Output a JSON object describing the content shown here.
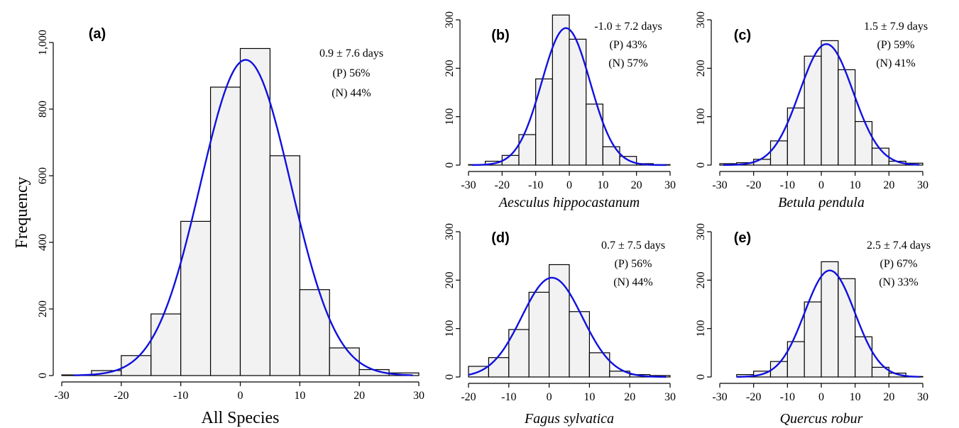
{
  "figure": {
    "ylabel": "Frequency"
  },
  "chart_data": [
    {
      "type": "bar",
      "panel": "(a)",
      "xlabel": "All Species",
      "xlabel_italic": false,
      "bin_width": 5,
      "bin_starts": [
        -30,
        -25,
        -20,
        -15,
        -10,
        -5,
        0,
        5,
        10,
        15,
        20,
        25
      ],
      "values": [
        2,
        15,
        60,
        185,
        463,
        866,
        982,
        660,
        258,
        83,
        18,
        8
      ],
      "xlim": [
        -30,
        30
      ],
      "ylim": [
        0,
        1000
      ],
      "xticks": [
        -30,
        -20,
        -10,
        0,
        10,
        20,
        30
      ],
      "yticks": [
        0,
        200,
        400,
        600,
        800,
        1000
      ],
      "ytick_labels": [
        "0",
        "200",
        "400",
        "600",
        "800",
        "1,000"
      ],
      "curve": {
        "mean": 0.9,
        "sd": 7.6,
        "peak": 948,
        "range": [
          -28,
          29
        ]
      },
      "annotations": [
        "0.9 ± 7.6 days",
        "(P) 56%",
        "(N) 44%"
      ]
    },
    {
      "type": "bar",
      "panel": "(b)",
      "xlabel": "Aesculus hippocastanum",
      "xlabel_italic": true,
      "bin_width": 5,
      "bin_starts": [
        -30,
        -25,
        -20,
        -15,
        -10,
        -5,
        0,
        5,
        10,
        15,
        20,
        25
      ],
      "values": [
        1,
        8,
        20,
        63,
        178,
        310,
        260,
        126,
        38,
        18,
        3,
        1
      ],
      "xlim": [
        -30,
        30
      ],
      "ylim": [
        0,
        300
      ],
      "xticks": [
        -30,
        -20,
        -10,
        0,
        10,
        20,
        30
      ],
      "yticks": [
        0,
        100,
        200,
        300
      ],
      "ytick_labels": [
        "0",
        "100",
        "200",
        "300"
      ],
      "curve": {
        "mean": -1.0,
        "sd": 7.2,
        "peak": 283,
        "range": [
          -29,
          29
        ]
      },
      "annotations": [
        "-1.0 ± 7.2 days",
        "(P) 43%",
        "(N) 57%"
      ]
    },
    {
      "type": "bar",
      "panel": "(c)",
      "xlabel": "Betula pendula",
      "xlabel_italic": true,
      "bin_width": 5,
      "bin_starts": [
        -30,
        -25,
        -20,
        -15,
        -10,
        -5,
        0,
        5,
        10,
        15,
        20,
        25
      ],
      "values": [
        3,
        5,
        12,
        50,
        118,
        225,
        257,
        197,
        90,
        35,
        8,
        4
      ],
      "xlim": [
        -30,
        30
      ],
      "ylim": [
        0,
        300
      ],
      "xticks": [
        -30,
        -20,
        -10,
        0,
        10,
        20,
        30
      ],
      "yticks": [
        0,
        100,
        200,
        300
      ],
      "ytick_labels": [
        "0",
        "100",
        "200",
        "300"
      ],
      "curve": {
        "mean": 1.5,
        "sd": 7.9,
        "peak": 250,
        "range": [
          -29,
          29
        ]
      },
      "annotations": [
        "1.5 ± 7.9 days",
        "(P) 59%",
        "(N) 41%"
      ]
    },
    {
      "type": "bar",
      "panel": "(d)",
      "xlabel": "Fagus sylvatica",
      "xlabel_italic": true,
      "bin_width": 5,
      "bin_starts": [
        -20,
        -15,
        -10,
        -5,
        0,
        5,
        10,
        15,
        20,
        25
      ],
      "values": [
        22,
        40,
        98,
        175,
        232,
        135,
        50,
        12,
        5,
        3
      ],
      "xlim": [
        -20,
        30
      ],
      "ylim": [
        0,
        300
      ],
      "xticks": [
        -20,
        -10,
        0,
        10,
        20,
        30
      ],
      "yticks": [
        0,
        100,
        200,
        300
      ],
      "ytick_labels": [
        "0",
        "100",
        "200",
        "300"
      ],
      "curve": {
        "mean": 0.7,
        "sd": 7.5,
        "peak": 205,
        "range": [
          -20,
          29
        ]
      },
      "annotations": [
        "0.7 ± 7.5 days",
        "(P) 56%",
        "(N) 44%"
      ]
    },
    {
      "type": "bar",
      "panel": "(e)",
      "xlabel": "Quercus robur",
      "xlabel_italic": true,
      "bin_width": 5,
      "bin_starts": [
        -25,
        -20,
        -15,
        -10,
        -5,
        0,
        5,
        10,
        15,
        20,
        25
      ],
      "values": [
        5,
        12,
        32,
        73,
        155,
        238,
        203,
        83,
        20,
        8,
        1
      ],
      "xlim": [
        -30,
        30
      ],
      "ylim": [
        0,
        300
      ],
      "xticks": [
        -30,
        -20,
        -10,
        0,
        10,
        20,
        30
      ],
      "yticks": [
        0,
        100,
        200,
        300
      ],
      "ytick_labels": [
        "0",
        "100",
        "200",
        "300"
      ],
      "curve": {
        "mean": 2.5,
        "sd": 7.4,
        "peak": 220,
        "range": [
          -25,
          29
        ]
      },
      "annotations": [
        "2.5 ± 7.4 days",
        "(P) 67%",
        "(N) 33%"
      ]
    }
  ]
}
